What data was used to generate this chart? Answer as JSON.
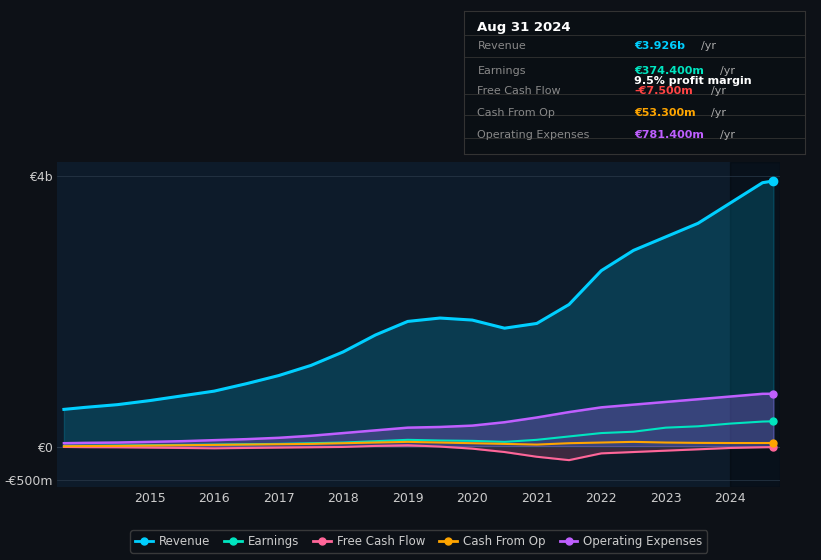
{
  "bg_color": "#0d1117",
  "plot_bg_color": "#0d1b2a",
  "title_box": {
    "date": "Aug 31 2024",
    "rows": [
      {
        "label": "Revenue",
        "value": "€3.926b",
        "unit": "/yr",
        "value_color": "#00cfff",
        "margin_label": null,
        "margin_color": null
      },
      {
        "label": "Earnings",
        "value": "€374.400m",
        "unit": "/yr",
        "value_color": "#00e5c0",
        "margin_label": "9.5% profit margin",
        "margin_color": "#ffffff"
      },
      {
        "label": "Free Cash Flow",
        "value": "-€7.500m",
        "unit": "/yr",
        "value_color": "#ff4444",
        "margin_label": null,
        "margin_color": null
      },
      {
        "label": "Cash From Op",
        "value": "€53.300m",
        "unit": "/yr",
        "value_color": "#ffa500",
        "margin_label": null,
        "margin_color": null
      },
      {
        "label": "Operating Expenses",
        "value": "€781.400m",
        "unit": "/yr",
        "value_color": "#bf5fff",
        "margin_label": null,
        "margin_color": null
      }
    ]
  },
  "years": [
    2013.67,
    2014.0,
    2014.5,
    2015.0,
    2015.5,
    2016.0,
    2016.5,
    2017.0,
    2017.5,
    2018.0,
    2018.5,
    2019.0,
    2019.5,
    2020.0,
    2020.5,
    2021.0,
    2021.5,
    2022.0,
    2022.5,
    2023.0,
    2023.5,
    2024.0,
    2024.5,
    2024.67
  ],
  "revenue": [
    550,
    580,
    620,
    680,
    750,
    820,
    930,
    1050,
    1200,
    1400,
    1650,
    1850,
    1900,
    1870,
    1750,
    1820,
    2100,
    2600,
    2900,
    3100,
    3300,
    3600,
    3900,
    3926
  ],
  "earnings": [
    10,
    12,
    15,
    20,
    25,
    30,
    35,
    40,
    50,
    60,
    80,
    100,
    90,
    85,
    70,
    100,
    150,
    200,
    220,
    280,
    300,
    340,
    370,
    374
  ],
  "fcf": [
    -5,
    -8,
    -10,
    -15,
    -20,
    -25,
    -20,
    -15,
    -10,
    -5,
    10,
    20,
    0,
    -30,
    -80,
    -150,
    -200,
    -100,
    -80,
    -60,
    -40,
    -20,
    -10,
    -7.5
  ],
  "cash_from_op": [
    5,
    8,
    10,
    15,
    20,
    25,
    30,
    35,
    40,
    50,
    60,
    70,
    60,
    50,
    40,
    30,
    50,
    60,
    70,
    60,
    55,
    53,
    53,
    53.3
  ],
  "op_expenses": [
    50,
    55,
    60,
    70,
    80,
    95,
    110,
    130,
    160,
    200,
    240,
    280,
    290,
    310,
    360,
    430,
    510,
    580,
    620,
    660,
    700,
    740,
    780,
    781
  ],
  "ylim_top": 4200,
  "ylim_bottom": -600,
  "y_ticks_labels": [
    "€4b",
    "€0",
    "-€500m"
  ],
  "y_ticks_values": [
    4000,
    0,
    -500
  ],
  "x_ticks": [
    2015,
    2016,
    2017,
    2018,
    2019,
    2020,
    2021,
    2022,
    2023,
    2024
  ],
  "legend": [
    {
      "label": "Revenue",
      "color": "#00cfff"
    },
    {
      "label": "Earnings",
      "color": "#00e5c0"
    },
    {
      "label": "Free Cash Flow",
      "color": "#ff6699"
    },
    {
      "label": "Cash From Op",
      "color": "#ffa500"
    },
    {
      "label": "Operating Expenses",
      "color": "#bf5fff"
    }
  ],
  "revenue_color": "#00cfff",
  "earnings_color": "#00e5c0",
  "fcf_color": "#ff6699",
  "cash_from_op_color": "#ffa500",
  "op_expenses_color": "#bf5fff",
  "grid_color": "#2a3a4a",
  "shaded_region_start": 2024.0
}
